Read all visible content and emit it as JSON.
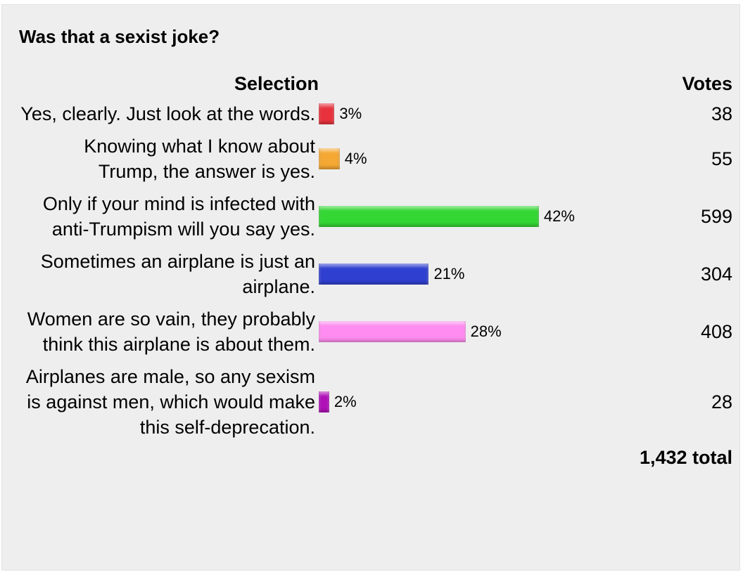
{
  "chart_data": {
    "type": "bar",
    "orientation": "horizontal",
    "title": "Was that a sexist joke?",
    "category_header": "Selection",
    "votes_header": "Votes",
    "categories": [
      "Yes, clearly. Just look at the words.",
      "Knowing what I know about Trump, the answer is yes.",
      "Only if your mind is infected with anti-Trumpism will you say yes.",
      "Sometimes an airplane is just an airplane.",
      "Women are so vain, they probably think this airplane is about them.",
      "Airplanes are male, so any sexism is against men, which would make this self-deprecation."
    ],
    "values": [
      3,
      4,
      42,
      21,
      28,
      2
    ],
    "value_labels": [
      "3%",
      "4%",
      "42%",
      "21%",
      "28%",
      "2%"
    ],
    "colors": [
      "#e8323c",
      "#f5a833",
      "#33d633",
      "#2f3fd0",
      "#ff8cf0",
      "#b010b8"
    ],
    "votes": [
      38,
      55,
      599,
      304,
      408,
      28
    ],
    "total": "1,432 total"
  }
}
